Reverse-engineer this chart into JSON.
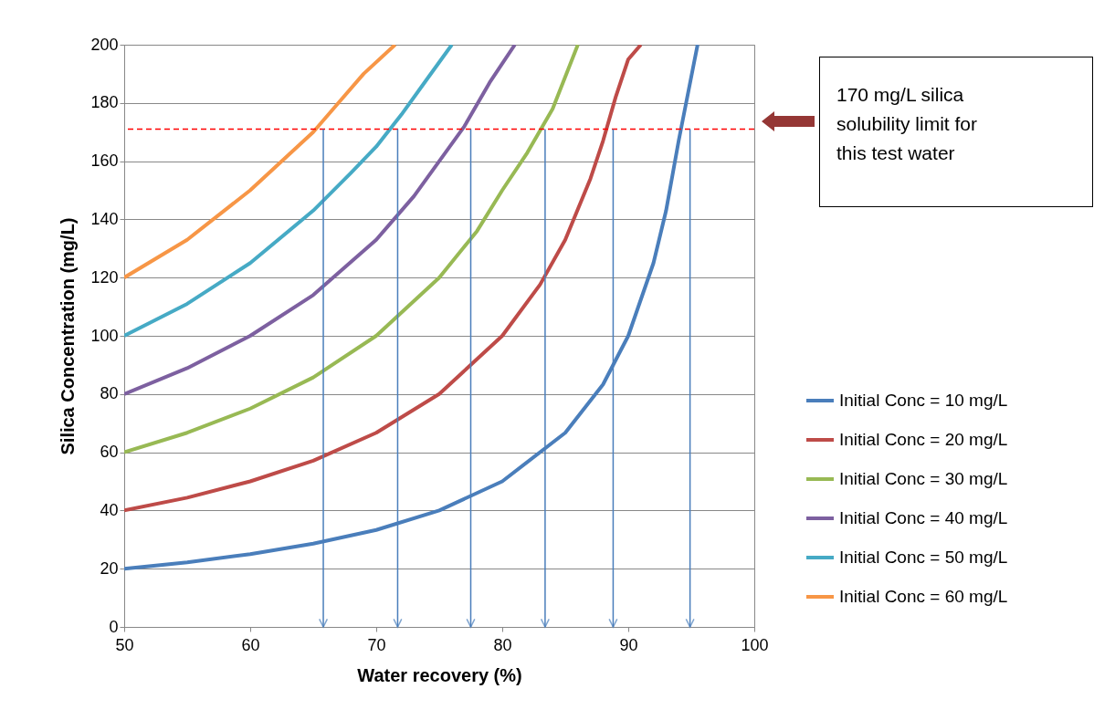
{
  "chart_data": {
    "type": "line",
    "xlabel": "Water recovery (%)",
    "ylabel": "Silica Concentration (mg/L)",
    "xlim": [
      50,
      100
    ],
    "xticks": [
      50,
      60,
      70,
      80,
      90,
      100
    ],
    "ylim": [
      0,
      200
    ],
    "yticks": [
      0,
      20,
      40,
      60,
      80,
      100,
      120,
      140,
      160,
      180,
      200
    ],
    "grid": "y",
    "legend": "right",
    "annotations": [
      "170 mg/L silica solubility limit for this test water"
    ],
    "series": [
      {
        "name": "Initial Conc = 10 mg/L",
        "color": "#4a7ebb",
        "x": [
          50,
          55,
          60,
          65,
          70,
          75,
          80,
          85,
          88,
          90,
          92,
          93,
          94,
          95.5
        ],
        "values": [
          20,
          22.2,
          25,
          28.6,
          33.3,
          40,
          50,
          66.7,
          83.3,
          100,
          125,
          143,
          167,
          200
        ]
      },
      {
        "name": "Initial Conc = 20 mg/L",
        "color": "#be4b48",
        "x": [
          50,
          55,
          60,
          65,
          70,
          75,
          80,
          83,
          85,
          87,
          88,
          89,
          90,
          91
        ],
        "values": [
          40,
          44.4,
          50,
          57.1,
          66.7,
          80,
          100,
          117.6,
          133,
          154,
          167,
          182,
          195,
          200
        ]
      },
      {
        "name": "Initial Conc = 30 mg/L",
        "color": "#98b954",
        "x": [
          50,
          55,
          60,
          65,
          70,
          75,
          78,
          80,
          82,
          84,
          86
        ],
        "values": [
          60,
          66.7,
          75,
          85.7,
          100,
          120,
          136,
          150,
          163,
          178,
          200
        ]
      },
      {
        "name": "Initial Conc = 40 mg/L",
        "color": "#7d60a0",
        "x": [
          50,
          55,
          60,
          65,
          70,
          73,
          75,
          77,
          79,
          81
        ],
        "values": [
          80,
          88.9,
          100,
          114,
          133,
          148,
          160,
          172,
          187,
          200
        ]
      },
      {
        "name": "Initial Conc = 50 mg/L",
        "color": "#46aac5",
        "x": [
          50,
          55,
          60,
          65,
          68,
          70,
          72,
          74,
          76
        ],
        "values": [
          100,
          111,
          125,
          143,
          156,
          165,
          176,
          188,
          200
        ]
      },
      {
        "name": "Initial Conc = 60 mg/L",
        "color": "#f79646",
        "x": [
          50,
          55,
          60,
          63,
          65,
          67,
          69,
          71.5
        ],
        "values": [
          120,
          133,
          150,
          162,
          170,
          180,
          190,
          200
        ]
      }
    ],
    "ref_lines": [
      {
        "axis": "y",
        "value": 171,
        "color": "#ff0000",
        "line_style": "dashed"
      },
      {
        "axis": "x",
        "value": 65.8,
        "color": "#4a7ebb"
      },
      {
        "axis": "x",
        "value": 71.7,
        "color": "#4a7ebb"
      },
      {
        "axis": "x",
        "value": 77.5,
        "color": "#4a7ebb"
      },
      {
        "axis": "x",
        "value": 83.4,
        "color": "#4a7ebb"
      },
      {
        "axis": "x",
        "value": 88.8,
        "color": "#4a7ebb"
      },
      {
        "axis": "x",
        "value": 94.9,
        "color": "#4a7ebb"
      }
    ]
  }
}
